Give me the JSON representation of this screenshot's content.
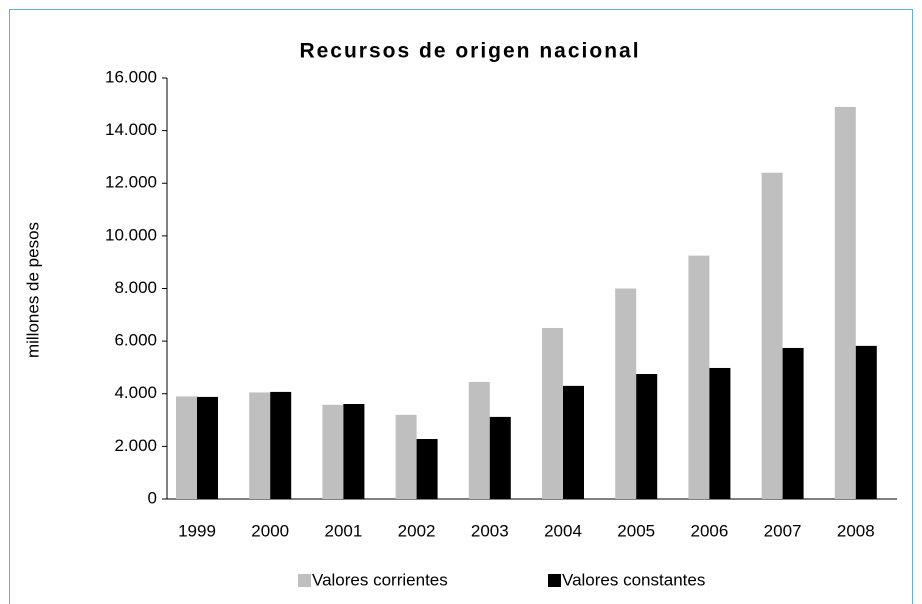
{
  "chart_data": {
    "type": "bar",
    "title": "Recursos de origen nacional",
    "y_label": "millones de pesos",
    "categories": [
      "1999",
      "2000",
      "2001",
      "2002",
      "2003",
      "2004",
      "2005",
      "2006",
      "2007",
      "2008"
    ],
    "series": [
      {
        "name": "Valores corrientes",
        "color": "#bfbfbf",
        "values": [
          3900,
          4050,
          3580,
          3200,
          4450,
          6500,
          8000,
          9250,
          12400,
          14900
        ]
      },
      {
        "name": "Valores constantes",
        "color": "#000000",
        "values": [
          3880,
          4070,
          3610,
          2280,
          3120,
          4300,
          4750,
          4980,
          5740,
          5820
        ]
      }
    ],
    "ylim": [
      0,
      16000
    ],
    "yticks": [
      0,
      {
        "value": 2000,
        "label": "2.000"
      },
      {
        "value": 4000,
        "label": "4.000"
      },
      {
        "value": 6000,
        "label": "6.000"
      },
      {
        "value": 8000,
        "label": "8.000"
      },
      {
        "value": 10000,
        "label": "10.000"
      },
      {
        "value": 12000,
        "label": "12.000"
      },
      {
        "value": 14000,
        "label": "14.000"
      },
      {
        "value": 16000,
        "label": "16.000"
      }
    ],
    "legend": "bottom",
    "grid": false
  }
}
